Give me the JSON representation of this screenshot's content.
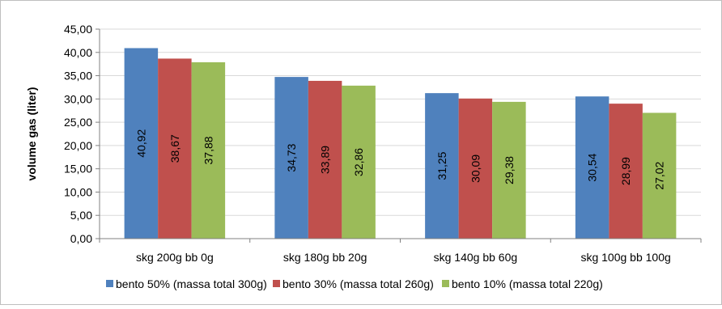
{
  "chart_data": {
    "type": "bar",
    "categories": [
      "skg 200g bb 0g",
      "skg 180g bb 20g",
      "skg 140g bb 60g",
      "skg 100g bb 100g"
    ],
    "series": [
      {
        "name": "bento 50% (massa total 300g)",
        "color": "#4f81bd",
        "values": [
          40.92,
          34.73,
          31.25,
          30.54
        ],
        "labels": [
          "40,92",
          "34,73",
          "31,25",
          "30,54"
        ]
      },
      {
        "name": "bento 30% (massa total 260g)",
        "color": "#c0504d",
        "values": [
          38.67,
          33.89,
          30.09,
          28.99
        ],
        "labels": [
          "38,67",
          "33,89",
          "30,09",
          "28,99"
        ]
      },
      {
        "name": "bento 10% (massa total 220g)",
        "color": "#9bbb59",
        "values": [
          37.88,
          32.86,
          29.38,
          27.02
        ],
        "labels": [
          "37,88",
          "32,86",
          "29,38",
          "27,02"
        ]
      }
    ],
    "ylabel": "volume gas (liter)",
    "ylim": [
      0,
      45
    ],
    "yticks": [
      {
        "value": 0,
        "label": "0,00"
      },
      {
        "value": 5,
        "label": "5,00"
      },
      {
        "value": 10,
        "label": "10,00"
      },
      {
        "value": 15,
        "label": "15,00"
      },
      {
        "value": 20,
        "label": "20,00"
      },
      {
        "value": 25,
        "label": "25,00"
      },
      {
        "value": 30,
        "label": "30,00"
      },
      {
        "value": 35,
        "label": "35,00"
      },
      {
        "value": 40,
        "label": "40,00"
      },
      {
        "value": 45,
        "label": "45,00"
      }
    ],
    "grid": true,
    "legend_position": "bottom"
  }
}
